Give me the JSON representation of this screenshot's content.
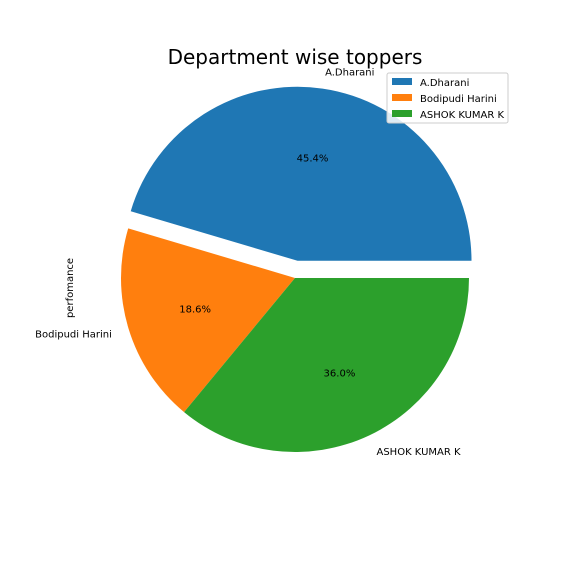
{
  "chart_data": {
    "type": "pie",
    "title": "Department wise toppers",
    "ylabel": "perfomance",
    "labels": [
      "A.Dharani",
      "Bodipudi Harini",
      "ASHOK KUMAR K"
    ],
    "values": [
      45.4,
      18.6,
      36.0
    ],
    "percent_labels": [
      "45.4%",
      "18.6%",
      "36.0%"
    ],
    "colors": [
      "#1f77b4",
      "#ff7f0e",
      "#2ca02c"
    ],
    "explode": [
      0.1,
      0,
      0
    ],
    "start_angle_deg": 0,
    "direction": "counterclockwise",
    "legend": {
      "placement": "top-right",
      "entries": [
        "A.Dharani",
        "Bodipudi Harini",
        "ASHOK KUMAR K"
      ]
    }
  }
}
